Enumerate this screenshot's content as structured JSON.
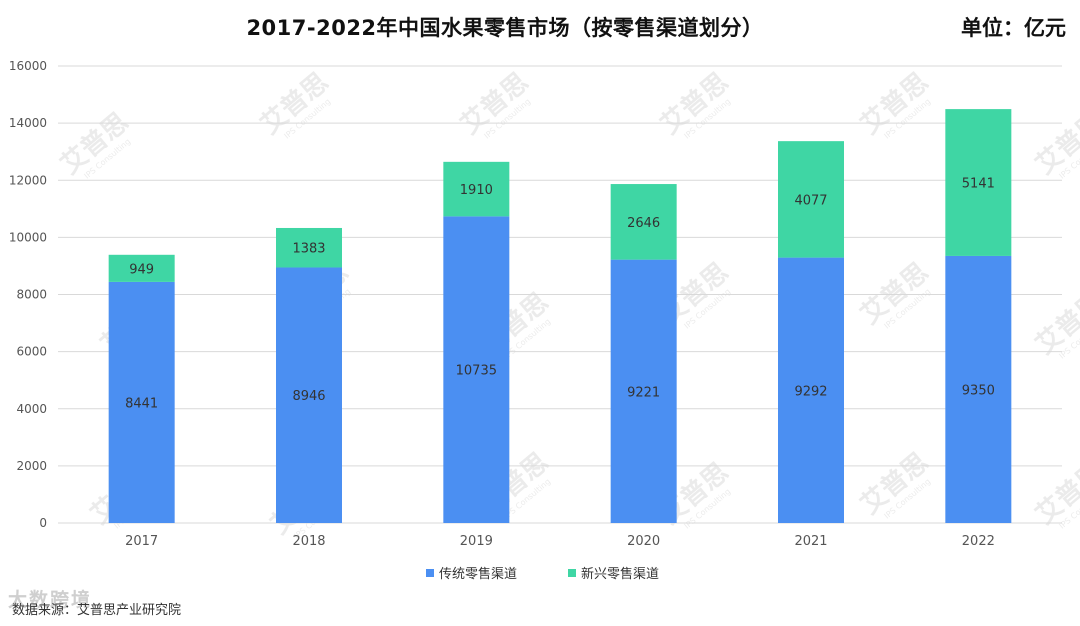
{
  "header": {
    "title": "2017-2022年中国水果零售市场（按零售渠道划分）",
    "unit": "单位：亿元"
  },
  "footer": {
    "source": "数据来源：艾普思产业研究院",
    "brand_watermark": "大数跨境"
  },
  "watermark": {
    "text": "艾普思",
    "sub": "IPS Consulting"
  },
  "colors": {
    "traditional": "#4b8ff2",
    "emerging": "#3fd6a4",
    "grid": "#d9d9d9",
    "axis_text": "#555555",
    "label_text": "#333333"
  },
  "chart_data": {
    "type": "bar",
    "stacked": true,
    "categories": [
      "2017",
      "2018",
      "2019",
      "2020",
      "2021",
      "2022"
    ],
    "series": [
      {
        "name": "传统零售渠道",
        "values": [
          8441,
          8946,
          10735,
          9221,
          9292,
          9350
        ]
      },
      {
        "name": "新兴零售渠道",
        "values": [
          949,
          1383,
          1910,
          2646,
          4077,
          5141
        ]
      }
    ],
    "ylim": [
      0,
      16000
    ],
    "yticks": [
      0,
      2000,
      4000,
      6000,
      8000,
      10000,
      12000,
      14000,
      16000
    ],
    "grid": true,
    "legend_position": "bottom",
    "xlabel": "",
    "ylabel": ""
  }
}
